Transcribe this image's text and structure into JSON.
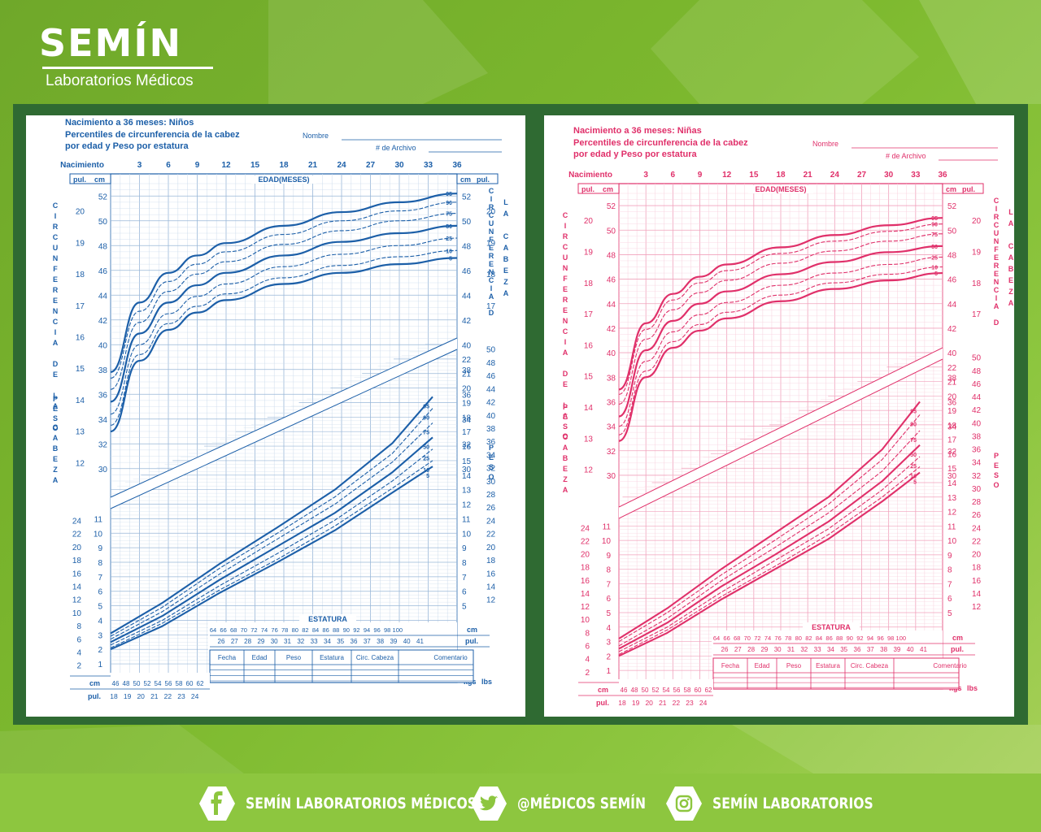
{
  "brand": {
    "name": "SEMÍN",
    "subtitle": "Laboratorios Médicos"
  },
  "colors": {
    "background": "#7db92e",
    "frame": "#2f6a32",
    "boy": "#1c5fa8",
    "girl": "#e0306a"
  },
  "footer": {
    "facebook": {
      "icon": "facebook-icon",
      "label": "SEMÍN LABORATORIOS MÉDICOS"
    },
    "twitter": {
      "icon": "twitter-icon",
      "label": "@MÉDICOS SEMÍN"
    },
    "instagram": {
      "icon": "instagram-icon",
      "label": "SEMÍN LABORATORIOS"
    }
  },
  "chart_data": [
    {
      "type": "line",
      "panel": "boy",
      "title": "Nacimiento a 36 meses: Niños",
      "subtitle": "Percentiles de circunferencia de la cabeza por edad y Peso por estatura",
      "form": {
        "name_label": "Nombre",
        "file_label": "# de Archivo"
      },
      "top_axis": {
        "label": "EDAD(MESES)",
        "start_label": "Nacimiento",
        "ticks": [
          "3",
          "6",
          "9",
          "12",
          "15",
          "18",
          "21",
          "24",
          "27",
          "30",
          "33",
          "36"
        ],
        "range": [
          0,
          36
        ]
      },
      "head": {
        "cm_label": "cm",
        "in_label": "pul.",
        "left_title": "CIRCUNFERENCIA DE LA CABEZA",
        "right_title": "CIRCUNFERENCIA DE LA CABEZA",
        "cm_ticks": [
          "52",
          "50",
          "48",
          "46",
          "44",
          "42",
          "40",
          "38",
          "36",
          "34",
          "32",
          "30"
        ],
        "in_ticks": [
          "20",
          "19",
          "18",
          "17",
          "16",
          "15",
          "14",
          "13",
          "12"
        ],
        "right_in_ticks": [
          "20",
          "19",
          "18",
          "17"
        ],
        "ylim_cm": [
          29,
          53
        ],
        "x_months": [
          0,
          3,
          6,
          9,
          12,
          18,
          24,
          30,
          36
        ],
        "series": [
          {
            "name": "95",
            "values": [
              37.8,
              43.4,
              45.8,
              47.2,
              48.2,
              49.6,
              50.7,
              51.5,
              52.2
            ]
          },
          {
            "name": "90",
            "values": [
              37.3,
              42.7,
              45.1,
              46.5,
              47.5,
              48.9,
              50.0,
              50.8,
              51.5
            ]
          },
          {
            "name": "75",
            "values": [
              36.4,
              41.8,
              44.3,
              45.7,
              46.7,
              48.1,
              49.2,
              50.0,
              50.6
            ]
          },
          {
            "name": "50",
            "values": [
              35.4,
              40.9,
              43.4,
              44.8,
              45.8,
              47.2,
              48.3,
              49.0,
              49.6
            ]
          },
          {
            "name": "25",
            "values": [
              34.4,
              40.0,
              42.5,
              43.9,
              44.9,
              46.3,
              47.3,
              48.0,
              48.6
            ]
          },
          {
            "name": "10",
            "values": [
              33.5,
              39.2,
              41.7,
              43.1,
              44.1,
              45.4,
              46.4,
              47.1,
              47.6
            ]
          },
          {
            "name": "5",
            "values": [
              33.0,
              38.7,
              41.2,
              42.6,
              43.6,
              44.9,
              45.8,
              46.5,
              47.0
            ]
          }
        ]
      },
      "weight": {
        "label": "PESO",
        "kg_label": "kgs",
        "lb_label": "lbs",
        "right_kg_ticks": [
          "22",
          "21",
          "20",
          "19",
          "18",
          "17",
          "16",
          "15",
          "14",
          "13",
          "12",
          "11",
          "10",
          "9",
          "8",
          "7",
          "6",
          "5"
        ],
        "right_lb_ticks": [
          "50",
          "48",
          "46",
          "44",
          "42",
          "40",
          "38",
          "36",
          "34",
          "32",
          "30",
          "28",
          "26",
          "24",
          "22",
          "20",
          "18",
          "16",
          "14",
          "12"
        ],
        "left_kg_ticks": [
          "11",
          "10",
          "9",
          "8",
          "7",
          "6",
          "5",
          "4",
          "3",
          "2",
          "1"
        ],
        "left_lb_ticks": [
          "24",
          "22",
          "20",
          "18",
          "16",
          "14",
          "12",
          "10",
          "8",
          "6",
          "4",
          "2"
        ],
        "ylim_kg": [
          0.5,
          23
        ],
        "x_cm": [
          46,
          55,
          65,
          75,
          85,
          95,
          102
        ],
        "series": [
          {
            "name": "95",
            "values": [
              3.1,
              5.2,
              7.9,
              10.4,
              13.0,
              16.2,
              19.4
            ]
          },
          {
            "name": "90",
            "values": [
              2.9,
              4.9,
              7.6,
              10.0,
              12.5,
              15.5,
              18.6
            ]
          },
          {
            "name": "75",
            "values": [
              2.7,
              4.6,
              7.2,
              9.6,
              12.0,
              14.9,
              17.6
            ]
          },
          {
            "name": "50",
            "values": [
              2.5,
              4.3,
              6.8,
              9.1,
              11.4,
              14.2,
              16.6
            ]
          },
          {
            "name": "25",
            "values": [
              2.3,
              4.0,
              6.4,
              8.6,
              10.9,
              13.6,
              15.8
            ]
          },
          {
            "name": "10",
            "values": [
              2.1,
              3.8,
              6.1,
              8.2,
              10.5,
              13.1,
              15.0
            ]
          },
          {
            "name": "5",
            "values": [
              2.0,
              3.6,
              5.9,
              8.0,
              10.2,
              12.8,
              14.6
            ]
          }
        ]
      },
      "stature": {
        "label": "ESTATURA",
        "cm_label": "cm",
        "in_label": "pul.",
        "cm_ticks_upper": [
          "64",
          "66",
          "68",
          "70",
          "72",
          "74",
          "76",
          "78",
          "80",
          "82",
          "84",
          "86",
          "88",
          "90",
          "92",
          "94",
          "96",
          "98",
          "100"
        ],
        "in_ticks_upper": [
          "26",
          "27",
          "28",
          "29",
          "30",
          "31",
          "32",
          "33",
          "34",
          "35",
          "36",
          "37",
          "38",
          "39",
          "40",
          "41"
        ],
        "cm_ticks_lower": [
          "46",
          "48",
          "50",
          "52",
          "54",
          "56",
          "58",
          "60",
          "62"
        ],
        "in_ticks_lower": [
          "18",
          "19",
          "20",
          "21",
          "22",
          "23",
          "24"
        ]
      },
      "record_table": {
        "headers": [
          "Fecha",
          "Edad",
          "Peso",
          "Estatura",
          "Circ. Cabeza",
          "Comentario"
        ]
      }
    },
    {
      "type": "line",
      "panel": "girl",
      "title": "Nacimiento a 36 meses: Niñas",
      "subtitle": "Percentiles de circunferencia de la cabeza por edad y Peso por estatura",
      "form": {
        "name_label": "Nombre",
        "file_label": "# de Archivo"
      },
      "top_axis": {
        "label": "EDAD(MESES)",
        "start_label": "Nacimiento",
        "ticks": [
          "3",
          "6",
          "9",
          "12",
          "15",
          "18",
          "21",
          "24",
          "27",
          "30",
          "33",
          "36"
        ],
        "range": [
          0,
          36
        ]
      },
      "head": {
        "cm_label": "cm",
        "in_label": "pul.",
        "left_title": "CIRCUNFERENCIA DE LA CABEZA",
        "right_title": "CIRCUNFERENCIA DE LA CABEZA",
        "cm_ticks": [
          "52",
          "50",
          "48",
          "46",
          "44",
          "42",
          "40",
          "38",
          "36",
          "34",
          "32",
          "30"
        ],
        "in_ticks": [
          "20",
          "19",
          "18",
          "17",
          "16",
          "15",
          "14",
          "13",
          "12"
        ],
        "right_in_ticks": [
          "20",
          "19",
          "18",
          "17"
        ],
        "ylim_cm": [
          29,
          53
        ],
        "x_months": [
          0,
          3,
          6,
          9,
          12,
          18,
          24,
          30,
          36
        ],
        "series": [
          {
            "name": "95",
            "values": [
              37.0,
              42.4,
              44.8,
              46.2,
              47.2,
              48.6,
              49.6,
              50.4,
              51.0
            ]
          },
          {
            "name": "90",
            "values": [
              36.6,
              41.9,
              44.3,
              45.7,
              46.7,
              48.1,
              49.1,
              49.9,
              50.5
            ]
          },
          {
            "name": "75",
            "values": [
              35.8,
              41.1,
              43.5,
              44.9,
              45.9,
              47.3,
              48.3,
              49.1,
              49.7
            ]
          },
          {
            "name": "50",
            "values": [
              34.8,
              40.2,
              42.6,
              44.0,
              45.0,
              46.4,
              47.4,
              48.2,
              48.7
            ]
          },
          {
            "name": "25",
            "values": [
              34.0,
              39.3,
              41.7,
              43.1,
              44.1,
              45.5,
              46.5,
              47.2,
              47.8
            ]
          },
          {
            "name": "10",
            "values": [
              33.3,
              38.5,
              40.9,
              42.3,
              43.3,
              44.7,
              45.7,
              46.4,
              47.0
            ]
          },
          {
            "name": "5",
            "values": [
              32.8,
              38.0,
              40.4,
              41.8,
              42.8,
              44.2,
              45.2,
              45.9,
              46.5
            ]
          }
        ]
      },
      "weight": {
        "label": "PESO",
        "kg_label": "kgs",
        "lb_label": "lbs",
        "right_kg_ticks": [
          "22",
          "21",
          "20",
          "19",
          "18",
          "17",
          "16",
          "15",
          "14",
          "13",
          "12",
          "11",
          "10",
          "9",
          "8",
          "7",
          "6",
          "5"
        ],
        "right_lb_ticks": [
          "50",
          "48",
          "46",
          "44",
          "42",
          "40",
          "38",
          "36",
          "34",
          "32",
          "30",
          "28",
          "26",
          "24",
          "22",
          "20",
          "18",
          "16",
          "14",
          "12"
        ],
        "left_kg_ticks": [
          "11",
          "10",
          "9",
          "8",
          "7",
          "6",
          "5",
          "4",
          "3",
          "2",
          "1"
        ],
        "left_lb_ticks": [
          "24",
          "22",
          "20",
          "18",
          "16",
          "14",
          "12",
          "10",
          "8",
          "6",
          "4",
          "2"
        ],
        "ylim_kg": [
          0.5,
          23
        ],
        "x_cm": [
          46,
          55,
          65,
          75,
          85,
          95,
          102
        ],
        "series": [
          {
            "name": "95",
            "values": [
              3.2,
              5.3,
              8.0,
              10.5,
              13.0,
              16.3,
              19.6
            ]
          },
          {
            "name": "90",
            "values": [
              3.0,
              5.0,
              7.6,
              10.0,
              12.5,
              15.6,
              18.7
            ]
          },
          {
            "name": "75",
            "values": [
              2.7,
              4.6,
              7.2,
              9.5,
              11.9,
              14.8,
              17.6
            ]
          },
          {
            "name": "50",
            "values": [
              2.5,
              4.3,
              6.8,
              9.0,
              11.3,
              14.1,
              16.6
            ]
          },
          {
            "name": "25",
            "values": [
              2.3,
              4.0,
              6.4,
              8.6,
              10.8,
              13.5,
              15.8
            ]
          },
          {
            "name": "10",
            "values": [
              2.1,
              3.8,
              6.1,
              8.2,
              10.4,
              13.0,
              15.1
            ]
          },
          {
            "name": "5",
            "values": [
              2.0,
              3.6,
              5.9,
              8.0,
              10.1,
              12.7,
              14.7
            ]
          }
        ]
      },
      "stature": {
        "label": "ESTATURA",
        "cm_label": "cm",
        "in_label": "pul.",
        "cm_ticks_upper": [
          "64",
          "66",
          "68",
          "70",
          "72",
          "74",
          "76",
          "78",
          "80",
          "82",
          "84",
          "86",
          "88",
          "90",
          "92",
          "94",
          "96",
          "98",
          "100"
        ],
        "in_ticks_upper": [
          "26",
          "27",
          "28",
          "29",
          "30",
          "31",
          "32",
          "33",
          "34",
          "35",
          "36",
          "37",
          "38",
          "39",
          "40",
          "41"
        ],
        "cm_ticks_lower": [
          "46",
          "48",
          "50",
          "52",
          "54",
          "56",
          "58",
          "60",
          "62"
        ],
        "in_ticks_lower": [
          "18",
          "19",
          "20",
          "21",
          "22",
          "23",
          "24"
        ]
      },
      "record_table": {
        "headers": [
          "Fecha",
          "Edad",
          "Peso",
          "Estatura",
          "Circ. Cabeza",
          "Comentario"
        ]
      }
    }
  ]
}
